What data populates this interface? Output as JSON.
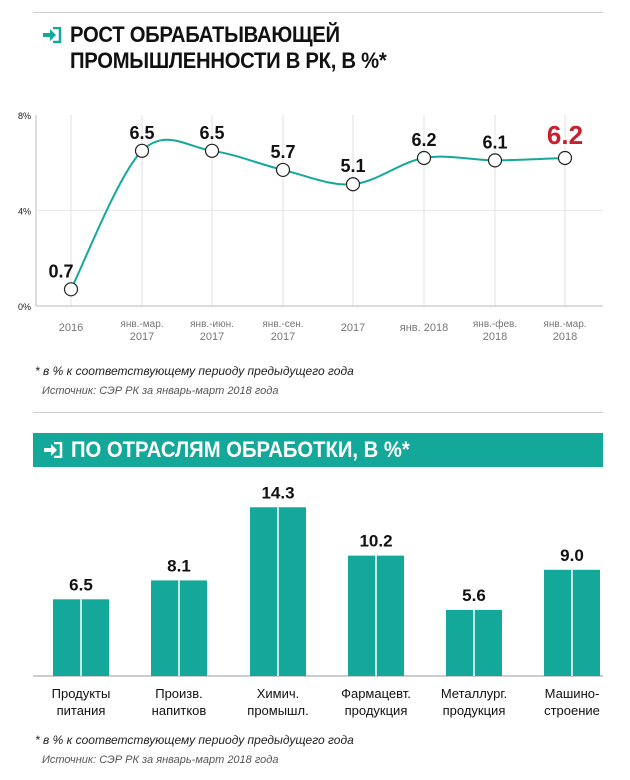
{
  "accent": "#14a89a",
  "highlight": "#c8202f",
  "icon": "arrow-into-box-icon",
  "chart_data": [
    {
      "type": "line",
      "title": "РОСТ ОБРАБАТЫВАЮЩЕЙ ПРОМЫШЛЕННОСТИ В РК, В %*",
      "title_line1": "РОСТ ОБРАБАТЫВАЮЩЕЙ",
      "title_line2": "ПРОМЫШЛЕННОСТИ В РК, В %*",
      "categories": [
        [
          "2016",
          ""
        ],
        [
          "янв.-мар.",
          "2017"
        ],
        [
          "янв.-июн.",
          "2017"
        ],
        [
          "янв.-сен.",
          "2017"
        ],
        [
          "2017",
          ""
        ],
        [
          "янв. 2018",
          ""
        ],
        [
          "янв.-фев.",
          "2018"
        ],
        [
          "янв.-мар.",
          "2018"
        ]
      ],
      "values": [
        0.7,
        6.5,
        6.5,
        5.7,
        5.1,
        6.2,
        6.1,
        6.2
      ],
      "labels": [
        "0.7",
        "6.5",
        "6.5",
        "5.7",
        "5.1",
        "6.2",
        "6.1",
        "6.2"
      ],
      "yticks": [
        "0%",
        "4%",
        "8%"
      ],
      "ylim": [
        0,
        8
      ],
      "grid": "vertical",
      "highlight_last": true
    },
    {
      "type": "bar",
      "title": "ПО ОТРАСЛЯМ ОБРАБОТКИ, В %*",
      "categories": [
        [
          "Продукты",
          "питания"
        ],
        [
          "Произв.",
          "напитков"
        ],
        [
          "Химич.",
          "промышл."
        ],
        [
          "Фармацевт.",
          "продукция"
        ],
        [
          "Металлург.",
          "продукция"
        ],
        [
          "Машино-",
          "строение"
        ]
      ],
      "values": [
        6.5,
        8.1,
        14.3,
        10.2,
        5.6,
        9.0
      ],
      "labels": [
        "6.5",
        "8.1",
        "14.3",
        "10.2",
        "5.6",
        "9.0"
      ]
    }
  ],
  "footnote": "* в % к соответствующему периоду предыдущего года",
  "source": "Источник:  СЭР РК за январь-март 2018 года"
}
